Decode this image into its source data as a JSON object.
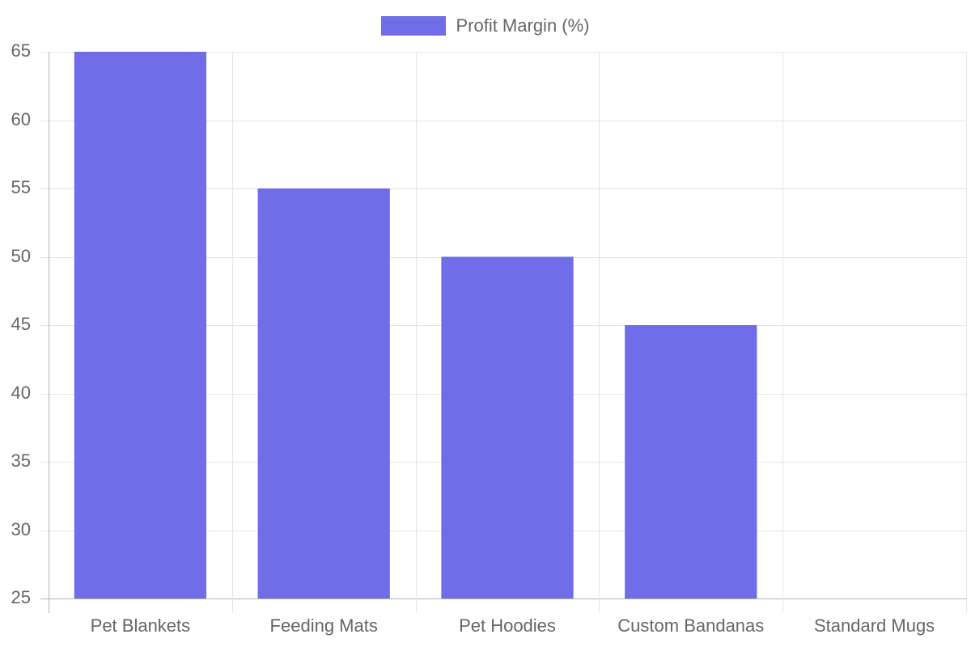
{
  "chart_data": {
    "type": "bar",
    "title": "",
    "xlabel": "",
    "ylabel": "",
    "categories": [
      "Pet Blankets",
      "Feeding Mats",
      "Pet Hoodies",
      "Custom Bandanas",
      "Standard Mugs"
    ],
    "series": [
      {
        "name": "Profit Margin (%)",
        "values": [
          65,
          55,
          50,
          45,
          25
        ],
        "color": "#716ce8"
      }
    ],
    "ylim": [
      25,
      65
    ],
    "yticks": [
      25,
      30,
      35,
      40,
      45,
      50,
      55,
      60,
      65
    ],
    "grid": true,
    "legend_position": "top"
  },
  "legend": {
    "label": "Profit Margin (%)",
    "color": "#716ce8"
  },
  "y_axis": {
    "ticks": [
      "65",
      "60",
      "55",
      "50",
      "45",
      "40",
      "35",
      "30",
      "25"
    ]
  },
  "x_axis": {
    "labels": [
      "Pet Blankets",
      "Feeding Mats",
      "Pet Hoodies",
      "Custom Bandanas",
      "Standard Mugs"
    ]
  },
  "colors": {
    "grid": "#e5e5e5",
    "axis": "#b3b3b3",
    "text": "#666666",
    "bar": "#716ce8"
  }
}
